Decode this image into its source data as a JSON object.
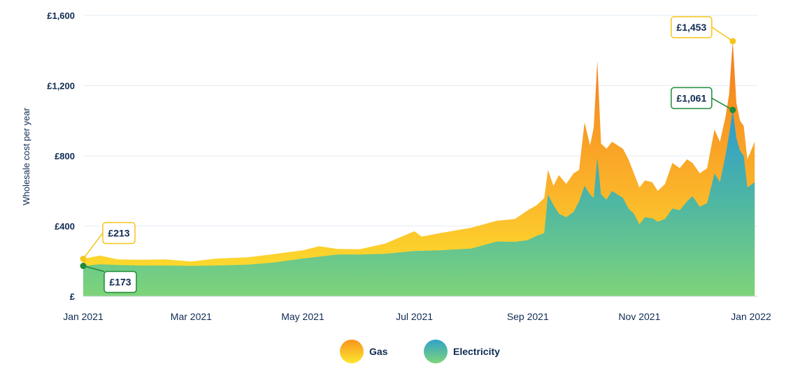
{
  "chart_data": {
    "type": "area",
    "ylabel": "Wholesale cost per year",
    "xlabel": "",
    "ylim": [
      0,
      1600
    ],
    "y_ticks": [
      {
        "value": 0,
        "label": "£"
      },
      {
        "value": 400,
        "label": "£400"
      },
      {
        "value": 800,
        "label": "£800"
      },
      {
        "value": 1200,
        "label": "£1,200"
      },
      {
        "value": 1600,
        "label": "£1,600"
      }
    ],
    "x_ticks": [
      {
        "date": "2021-01-01",
        "label": "Jan 2021"
      },
      {
        "date": "2021-03-01",
        "label": "Mar 2021"
      },
      {
        "date": "2021-05-01",
        "label": "May 2021"
      },
      {
        "date": "2021-07-01",
        "label": "Jul 2021"
      },
      {
        "date": "2021-09-01",
        "label": "Sep 2021"
      },
      {
        "date": "2021-11-01",
        "label": "Nov 2021"
      },
      {
        "date": "2022-01-01",
        "label": "Jan 2022"
      }
    ],
    "grid": true,
    "stacked": true,
    "colors": {
      "gas_top": "#f7941d",
      "gas_bottom": "#fde72f",
      "elec_top": "#30a2c9",
      "elec_bottom": "#7ed47a"
    },
    "series": [
      {
        "name": "Electricity",
        "points": [
          [
            "2021-01-01",
            173
          ],
          [
            "2021-01-10",
            182
          ],
          [
            "2021-01-20",
            178
          ],
          [
            "2021-02-01",
            175
          ],
          [
            "2021-02-15",
            175
          ],
          [
            "2021-03-01",
            173
          ],
          [
            "2021-03-15",
            175
          ],
          [
            "2021-04-01",
            180
          ],
          [
            "2021-04-15",
            192
          ],
          [
            "2021-05-01",
            215
          ],
          [
            "2021-05-20",
            238
          ],
          [
            "2021-06-01",
            238
          ],
          [
            "2021-06-15",
            242
          ],
          [
            "2021-07-01",
            258
          ],
          [
            "2021-07-15",
            262
          ],
          [
            "2021-08-01",
            272
          ],
          [
            "2021-08-15",
            312
          ],
          [
            "2021-08-25",
            310
          ],
          [
            "2021-09-01",
            320
          ],
          [
            "2021-09-06",
            345
          ],
          [
            "2021-09-10",
            360
          ],
          [
            "2021-09-12",
            580
          ],
          [
            "2021-09-15",
            520
          ],
          [
            "2021-09-18",
            470
          ],
          [
            "2021-09-22",
            450
          ],
          [
            "2021-09-26",
            480
          ],
          [
            "2021-09-29",
            540
          ],
          [
            "2021-10-02",
            630
          ],
          [
            "2021-10-05",
            580
          ],
          [
            "2021-10-07",
            560
          ],
          [
            "2021-10-09",
            790
          ],
          [
            "2021-10-11",
            580
          ],
          [
            "2021-10-14",
            550
          ],
          [
            "2021-10-17",
            600
          ],
          [
            "2021-10-20",
            580
          ],
          [
            "2021-10-23",
            560
          ],
          [
            "2021-10-26",
            500
          ],
          [
            "2021-10-29",
            470
          ],
          [
            "2021-11-01",
            410
          ],
          [
            "2021-11-04",
            450
          ],
          [
            "2021-11-08",
            445
          ],
          [
            "2021-11-11",
            425
          ],
          [
            "2021-11-15",
            440
          ],
          [
            "2021-11-19",
            500
          ],
          [
            "2021-11-23",
            490
          ],
          [
            "2021-11-27",
            540
          ],
          [
            "2021-11-30",
            570
          ],
          [
            "2021-12-04",
            510
          ],
          [
            "2021-12-08",
            530
          ],
          [
            "2021-12-12",
            700
          ],
          [
            "2021-12-15",
            650
          ],
          [
            "2021-12-18",
            800
          ],
          [
            "2021-12-20",
            920
          ],
          [
            "2021-12-22",
            1061
          ],
          [
            "2021-12-24",
            900
          ],
          [
            "2021-12-26",
            830
          ],
          [
            "2021-12-28",
            800
          ],
          [
            "2021-12-30",
            620
          ],
          [
            "2022-01-03",
            650
          ]
        ]
      },
      {
        "name": "Gas",
        "points": [
          [
            "2021-01-01",
            213
          ],
          [
            "2021-01-10",
            232
          ],
          [
            "2021-01-20",
            210
          ],
          [
            "2021-02-01",
            208
          ],
          [
            "2021-02-15",
            210
          ],
          [
            "2021-03-01",
            198
          ],
          [
            "2021-03-15",
            215
          ],
          [
            "2021-04-01",
            222
          ],
          [
            "2021-04-15",
            240
          ],
          [
            "2021-05-01",
            262
          ],
          [
            "2021-05-10",
            285
          ],
          [
            "2021-05-20",
            270
          ],
          [
            "2021-06-01",
            268
          ],
          [
            "2021-06-15",
            300
          ],
          [
            "2021-07-01",
            370
          ],
          [
            "2021-07-05",
            340
          ],
          [
            "2021-07-15",
            360
          ],
          [
            "2021-08-01",
            390
          ],
          [
            "2021-08-15",
            430
          ],
          [
            "2021-08-25",
            440
          ],
          [
            "2021-09-01",
            490
          ],
          [
            "2021-09-06",
            520
          ],
          [
            "2021-09-10",
            560
          ],
          [
            "2021-09-12",
            720
          ],
          [
            "2021-09-15",
            630
          ],
          [
            "2021-09-18",
            690
          ],
          [
            "2021-09-22",
            640
          ],
          [
            "2021-09-26",
            700
          ],
          [
            "2021-09-29",
            720
          ],
          [
            "2021-10-02",
            990
          ],
          [
            "2021-10-05",
            860
          ],
          [
            "2021-10-07",
            960
          ],
          [
            "2021-10-09",
            1340
          ],
          [
            "2021-10-11",
            870
          ],
          [
            "2021-10-14",
            840
          ],
          [
            "2021-10-17",
            880
          ],
          [
            "2021-10-20",
            860
          ],
          [
            "2021-10-23",
            840
          ],
          [
            "2021-10-26",
            780
          ],
          [
            "2021-10-29",
            700
          ],
          [
            "2021-11-01",
            620
          ],
          [
            "2021-11-04",
            660
          ],
          [
            "2021-11-08",
            650
          ],
          [
            "2021-11-11",
            600
          ],
          [
            "2021-11-15",
            640
          ],
          [
            "2021-11-19",
            760
          ],
          [
            "2021-11-23",
            730
          ],
          [
            "2021-11-27",
            780
          ],
          [
            "2021-11-30",
            760
          ],
          [
            "2021-12-04",
            700
          ],
          [
            "2021-12-08",
            730
          ],
          [
            "2021-12-12",
            950
          ],
          [
            "2021-12-15",
            880
          ],
          [
            "2021-12-18",
            1020
          ],
          [
            "2021-12-20",
            1150
          ],
          [
            "2021-12-22",
            1453
          ],
          [
            "2021-12-24",
            1100
          ],
          [
            "2021-12-26",
            1000
          ],
          [
            "2021-12-28",
            970
          ],
          [
            "2021-12-30",
            780
          ],
          [
            "2022-01-03",
            880
          ]
        ]
      }
    ],
    "annotations": [
      {
        "series": "Gas",
        "date": "2021-01-01",
        "value": 213,
        "label": "£213",
        "color": "#f5c518"
      },
      {
        "series": "Electricity",
        "date": "2021-01-01",
        "value": 173,
        "label": "£173",
        "color": "#1f8a3a"
      },
      {
        "series": "Gas",
        "date": "2021-12-22",
        "value": 1453,
        "label": "£1,453",
        "color": "#f5c518"
      },
      {
        "series": "Electricity",
        "date": "2021-12-22",
        "value": 1061,
        "label": "£1,061",
        "color": "#1f8a3a"
      }
    ],
    "legend_position": "bottom-center",
    "legend": [
      {
        "label": "Gas",
        "color_top": "#f7941d",
        "color_bottom": "#fde72f"
      },
      {
        "label": "Electricity",
        "color_top": "#30a2c9",
        "color_bottom": "#7ed47a"
      }
    ]
  }
}
